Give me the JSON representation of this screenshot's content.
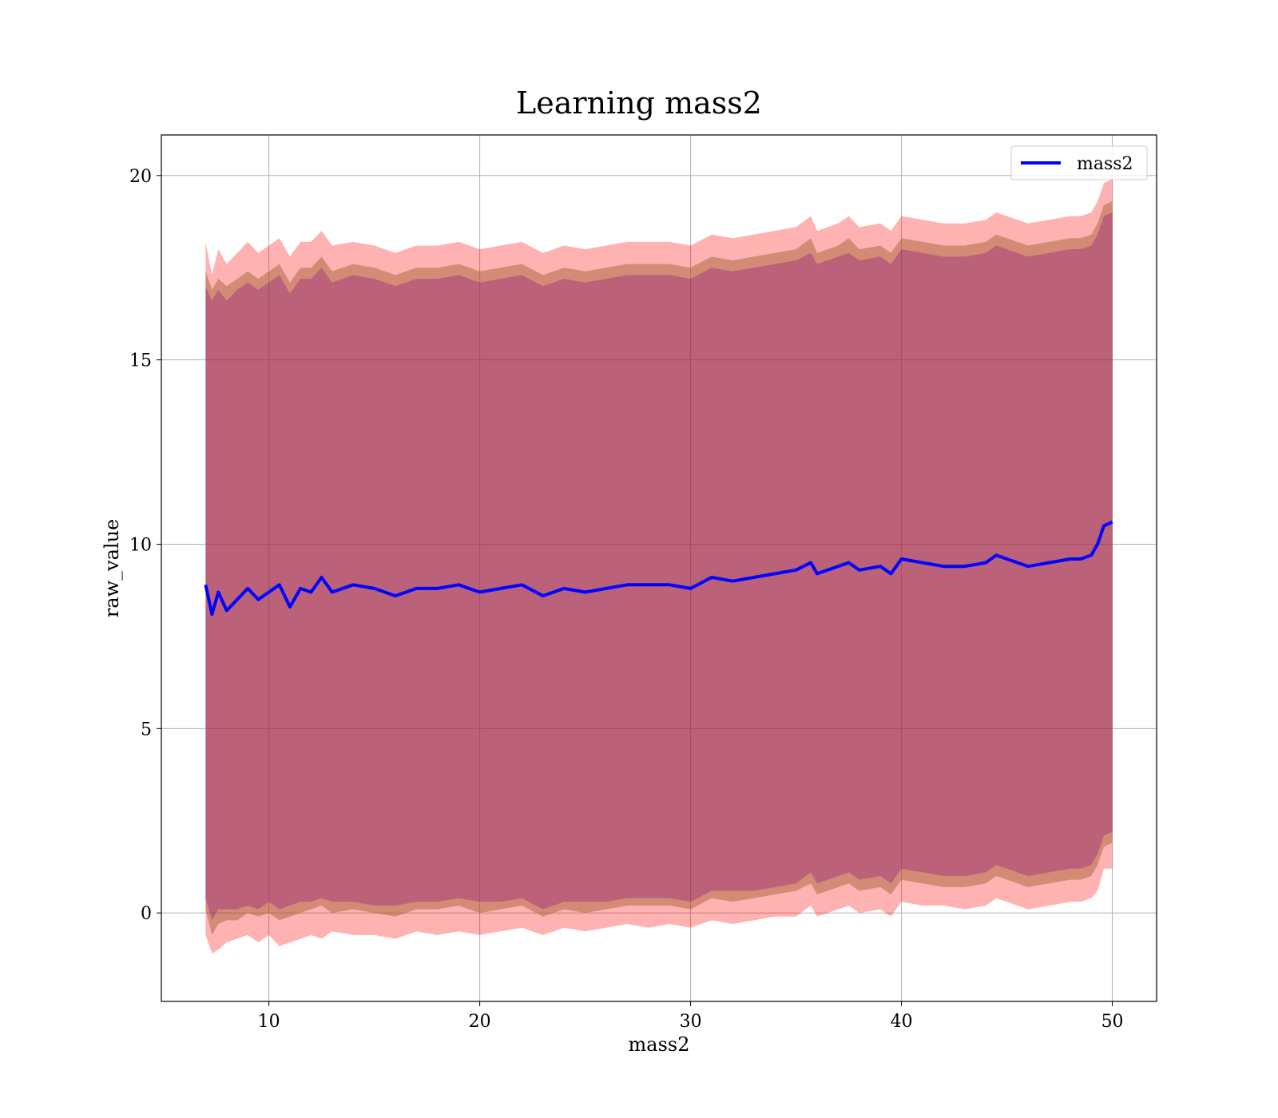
{
  "chart_data": {
    "type": "line",
    "title": "Learning mass2",
    "xlabel": "mass2",
    "ylabel": "raw_value",
    "xlim": [
      4.9,
      52.1
    ],
    "ylim": [
      -2.4,
      21.1
    ],
    "xticks": [
      10,
      20,
      30,
      40,
      50
    ],
    "yticks": [
      0,
      5,
      10,
      15,
      20
    ],
    "grid": true,
    "legend": {
      "placement": "top-right",
      "entries": [
        "mass2"
      ]
    },
    "colors": {
      "line": "#0000ff",
      "outer_band": "#ff0000",
      "middle_band": "#a05a2c",
      "inner_band": "#800080"
    },
    "series": [
      {
        "name": "mass2",
        "x": [
          7.0,
          7.3,
          7.6,
          8.0,
          8.5,
          9.0,
          9.5,
          10.0,
          10.5,
          11.0,
          11.5,
          12.0,
          12.5,
          13.0,
          14.0,
          15.0,
          16.0,
          17.0,
          18.0,
          19.0,
          20.0,
          21.0,
          22.0,
          23.0,
          24.0,
          25.0,
          26.0,
          27.0,
          28.0,
          29.0,
          30.0,
          31.0,
          32.0,
          33.0,
          34.0,
          35.0,
          35.7,
          36.0,
          37.0,
          37.5,
          38.0,
          39.0,
          39.5,
          40.0,
          41.0,
          42.0,
          43.0,
          44.0,
          44.5,
          45.0,
          46.0,
          47.0,
          48.0,
          48.5,
          49.0,
          49.3,
          49.6,
          50.0
        ],
        "y": [
          8.9,
          8.1,
          8.7,
          8.2,
          8.5,
          8.8,
          8.5,
          8.7,
          8.9,
          8.3,
          8.8,
          8.7,
          9.1,
          8.7,
          8.9,
          8.8,
          8.6,
          8.8,
          8.8,
          8.9,
          8.7,
          8.8,
          8.9,
          8.6,
          8.8,
          8.7,
          8.8,
          8.9,
          8.9,
          8.9,
          8.8,
          9.1,
          9.0,
          9.1,
          9.2,
          9.3,
          9.5,
          9.2,
          9.4,
          9.5,
          9.3,
          9.4,
          9.2,
          9.6,
          9.5,
          9.4,
          9.4,
          9.5,
          9.7,
          9.6,
          9.4,
          9.5,
          9.6,
          9.6,
          9.7,
          10.0,
          10.5,
          10.6
        ],
        "lower_outer": [
          -0.6,
          -1.1,
          -1.0,
          -0.8,
          -0.7,
          -0.6,
          -0.8,
          -0.6,
          -0.9,
          -0.8,
          -0.7,
          -0.6,
          -0.7,
          -0.5,
          -0.6,
          -0.6,
          -0.7,
          -0.5,
          -0.6,
          -0.5,
          -0.6,
          -0.5,
          -0.4,
          -0.6,
          -0.4,
          -0.5,
          -0.4,
          -0.3,
          -0.4,
          -0.3,
          -0.4,
          -0.2,
          -0.3,
          -0.2,
          -0.1,
          -0.1,
          0.2,
          -0.1,
          0.1,
          0.2,
          0.0,
          0.1,
          -0.1,
          0.3,
          0.2,
          0.2,
          0.1,
          0.2,
          0.4,
          0.3,
          0.1,
          0.2,
          0.3,
          0.3,
          0.4,
          0.6,
          1.2,
          1.2
        ],
        "lower_middle": [
          0.1,
          -0.6,
          -0.3,
          -0.2,
          -0.2,
          0.0,
          -0.1,
          0.0,
          -0.2,
          -0.1,
          0.0,
          0.1,
          0.2,
          0.0,
          0.1,
          0.0,
          -0.1,
          0.1,
          0.1,
          0.2,
          0.0,
          0.1,
          0.2,
          -0.1,
          0.1,
          0.0,
          0.1,
          0.2,
          0.2,
          0.2,
          0.1,
          0.4,
          0.3,
          0.4,
          0.5,
          0.6,
          0.8,
          0.5,
          0.7,
          0.8,
          0.6,
          0.7,
          0.5,
          0.9,
          0.8,
          0.7,
          0.7,
          0.8,
          1.0,
          0.9,
          0.7,
          0.8,
          0.9,
          0.9,
          1.0,
          1.3,
          1.8,
          1.9
        ],
        "lower_inner": [
          0.4,
          -0.2,
          0.1,
          0.1,
          0.1,
          0.2,
          0.1,
          0.3,
          0.1,
          0.2,
          0.3,
          0.3,
          0.4,
          0.3,
          0.3,
          0.2,
          0.2,
          0.3,
          0.3,
          0.4,
          0.3,
          0.3,
          0.4,
          0.1,
          0.3,
          0.3,
          0.3,
          0.4,
          0.4,
          0.4,
          0.3,
          0.6,
          0.6,
          0.6,
          0.7,
          0.8,
          1.1,
          0.8,
          1.0,
          1.1,
          0.9,
          1.0,
          0.8,
          1.2,
          1.1,
          1.0,
          1.0,
          1.1,
          1.3,
          1.2,
          1.0,
          1.1,
          1.2,
          1.2,
          1.3,
          1.6,
          2.1,
          2.2
        ],
        "upper_inner": [
          17.0,
          16.6,
          16.9,
          16.6,
          16.9,
          17.1,
          16.9,
          17.1,
          17.3,
          16.8,
          17.2,
          17.2,
          17.5,
          17.1,
          17.3,
          17.2,
          17.0,
          17.2,
          17.2,
          17.3,
          17.1,
          17.2,
          17.3,
          17.0,
          17.2,
          17.1,
          17.2,
          17.3,
          17.3,
          17.3,
          17.2,
          17.5,
          17.4,
          17.5,
          17.6,
          17.7,
          17.9,
          17.6,
          17.8,
          17.9,
          17.7,
          17.8,
          17.6,
          18.0,
          17.9,
          17.8,
          17.8,
          17.9,
          18.1,
          18.0,
          17.8,
          17.9,
          18.0,
          18.0,
          18.1,
          18.4,
          18.9,
          19.0
        ],
        "upper_middle": [
          17.4,
          16.9,
          17.2,
          17.0,
          17.2,
          17.4,
          17.2,
          17.4,
          17.6,
          17.1,
          17.5,
          17.5,
          17.8,
          17.4,
          17.6,
          17.5,
          17.3,
          17.5,
          17.5,
          17.6,
          17.4,
          17.5,
          17.6,
          17.3,
          17.5,
          17.4,
          17.5,
          17.6,
          17.6,
          17.6,
          17.5,
          17.8,
          17.7,
          17.8,
          17.9,
          18.0,
          18.3,
          17.9,
          18.1,
          18.3,
          18.0,
          18.1,
          17.9,
          18.3,
          18.2,
          18.1,
          18.1,
          18.2,
          18.4,
          18.3,
          18.1,
          18.2,
          18.3,
          18.3,
          18.4,
          18.7,
          19.2,
          19.3
        ],
        "upper_outer": [
          18.2,
          17.3,
          18.0,
          17.6,
          17.9,
          18.2,
          17.9,
          18.1,
          18.3,
          17.8,
          18.2,
          18.2,
          18.5,
          18.1,
          18.2,
          18.1,
          17.9,
          18.1,
          18.1,
          18.2,
          18.0,
          18.1,
          18.2,
          17.9,
          18.1,
          18.0,
          18.1,
          18.2,
          18.2,
          18.2,
          18.1,
          18.4,
          18.3,
          18.4,
          18.5,
          18.6,
          18.9,
          18.5,
          18.7,
          18.9,
          18.6,
          18.7,
          18.5,
          18.9,
          18.8,
          18.7,
          18.7,
          18.8,
          19.0,
          18.9,
          18.7,
          18.8,
          18.9,
          18.9,
          19.0,
          19.3,
          19.8,
          19.9
        ]
      }
    ]
  }
}
